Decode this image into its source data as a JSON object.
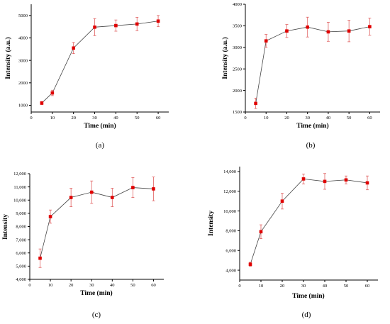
{
  "chart_data": [
    {
      "panel_label": "(a)",
      "type": "line",
      "xlabel": "Time (min)",
      "ylabel": "Intensity (a.u.)",
      "xlim": [
        0,
        65
      ],
      "ylim": [
        700,
        5500
      ],
      "x_ticks": [
        0,
        10,
        20,
        30,
        40,
        50,
        60
      ],
      "y_ticks": [
        1000,
        2000,
        3000,
        4000,
        5000
      ],
      "y_tick_labels": [
        "1000",
        "2000",
        "3000",
        "4000",
        "5000"
      ],
      "x": [
        5,
        10,
        20,
        30,
        40,
        50,
        60
      ],
      "values": [
        1100,
        1550,
        3550,
        4480,
        4550,
        4620,
        4750
      ],
      "errors": [
        70,
        120,
        250,
        380,
        250,
        300,
        250
      ],
      "color": "#e00000"
    },
    {
      "panel_label": "(b)",
      "type": "line",
      "xlabel": "Time (min)",
      "ylabel": "Intensity (a.u.)",
      "xlim": [
        0,
        65
      ],
      "ylim": [
        1500,
        4000
      ],
      "x_ticks": [
        0,
        10,
        20,
        30,
        40,
        50,
        60
      ],
      "y_ticks": [
        1500,
        2000,
        2500,
        3000,
        3500,
        4000
      ],
      "y_tick_labels": [
        "1500",
        "2000",
        "2500",
        "3000",
        "3500",
        "4000"
      ],
      "x": [
        5,
        10,
        20,
        30,
        40,
        50,
        60
      ],
      "values": [
        1700,
        3150,
        3380,
        3470,
        3360,
        3380,
        3480
      ],
      "errors": [
        120,
        150,
        150,
        230,
        220,
        250,
        200
      ],
      "color": "#e00000"
    },
    {
      "panel_label": "(c)",
      "type": "line",
      "xlabel": "Time (min)",
      "ylabel": "Intensity",
      "xlim": [
        0,
        65
      ],
      "ylim": [
        4000,
        12000
      ],
      "x_ticks": [
        0,
        10,
        20,
        30,
        40,
        50,
        60
      ],
      "y_ticks": [
        4000,
        5000,
        6000,
        7000,
        8000,
        9000,
        10000,
        11000,
        12000
      ],
      "y_tick_labels": [
        "4,000",
        "5,000",
        "6,000",
        "7,000",
        "8,000",
        "9,000",
        "10,000",
        "11,000",
        "12,000"
      ],
      "x": [
        5,
        10,
        20,
        30,
        40,
        50,
        60
      ],
      "values": [
        5600,
        8750,
        10200,
        10600,
        10200,
        10950,
        10850
      ],
      "errors": [
        700,
        500,
        700,
        850,
        700,
        750,
        900
      ],
      "color": "#e00000"
    },
    {
      "panel_label": "(d)",
      "type": "line",
      "xlabel": "Time (min)",
      "ylabel": "Intensity",
      "xlim": [
        0,
        65
      ],
      "ylim": [
        3000,
        14500
      ],
      "x_ticks": [
        0,
        10,
        20,
        30,
        40,
        50,
        60
      ],
      "y_ticks": [
        4000,
        6000,
        8000,
        10000,
        12000,
        14000
      ],
      "y_tick_labels": [
        "4,000",
        "6,000",
        "8,000",
        "10,000",
        "12,000",
        "14,000"
      ],
      "x": [
        5,
        10,
        20,
        30,
        40,
        50,
        60
      ],
      "values": [
        4600,
        7900,
        11000,
        13250,
        13000,
        13150,
        12850
      ],
      "errors": [
        200,
        700,
        800,
        500,
        800,
        400,
        700
      ],
      "color": "#e00000"
    }
  ]
}
